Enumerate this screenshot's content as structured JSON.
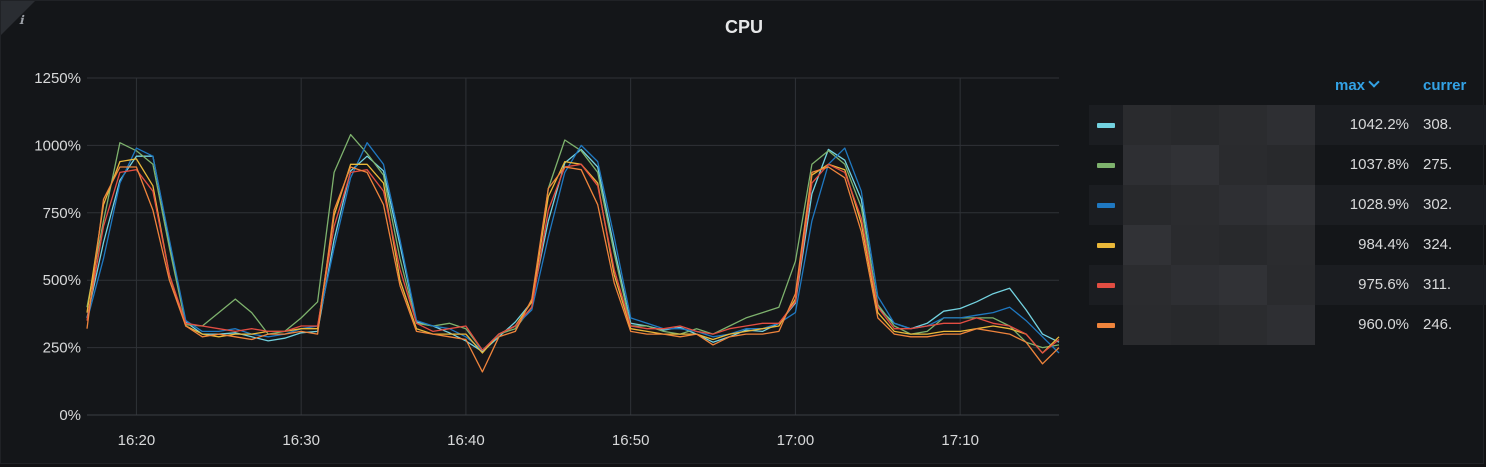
{
  "panel": {
    "title": "CPU",
    "info_icon": "ℹ"
  },
  "legend": {
    "headers": {
      "max": "max",
      "current": "currer"
    },
    "rows": [
      {
        "color": "#73d2e0",
        "max": "1042.2%",
        "current": "308."
      },
      {
        "color": "#7eb26d",
        "max": "1037.8%",
        "current": "275."
      },
      {
        "color": "#1f78c1",
        "max": "1028.9%",
        "current": "302."
      },
      {
        "color": "#eab839",
        "max": "984.4%",
        "current": "324."
      },
      {
        "color": "#e24d42",
        "max": "975.6%",
        "current": "311."
      },
      {
        "color": "#ef843c",
        "max": "960.0%",
        "current": "246."
      }
    ]
  },
  "chart_data": {
    "type": "line",
    "title": "CPU",
    "xlabel": "",
    "ylabel": "",
    "ylim": [
      0,
      1250
    ],
    "yticks": [
      "0%",
      "250%",
      "500%",
      "750%",
      "1000%",
      "1250%"
    ],
    "xticks": [
      "16:20",
      "16:30",
      "16:40",
      "16:50",
      "17:00",
      "17:10"
    ],
    "x_range": [
      "16:17",
      "17:16"
    ],
    "grid": true,
    "legend_position": "right",
    "x": [
      "16:17",
      "16:18",
      "16:19",
      "16:20",
      "16:21",
      "16:22",
      "16:23",
      "16:24",
      "16:25",
      "16:26",
      "16:27",
      "16:28",
      "16:29",
      "16:30",
      "16:31",
      "16:32",
      "16:33",
      "16:34",
      "16:35",
      "16:36",
      "16:37",
      "16:38",
      "16:39",
      "16:40",
      "16:41",
      "16:42",
      "16:43",
      "16:44",
      "16:45",
      "16:46",
      "16:47",
      "16:48",
      "16:49",
      "16:50",
      "16:51",
      "16:52",
      "16:53",
      "16:54",
      "16:55",
      "16:56",
      "16:57",
      "16:58",
      "16:59",
      "17:00",
      "17:01",
      "17:02",
      "17:03",
      "17:04",
      "17:05",
      "17:06",
      "17:07",
      "17:08",
      "17:09",
      "17:10",
      "17:11",
      "17:12",
      "17:13",
      "17:14",
      "17:15",
      "17:16"
    ],
    "series": [
      {
        "color": "#73d2e0",
        "values": [
          360,
          640,
          870,
          960,
          960,
          640,
          345,
          300,
          300,
          305,
          290,
          275,
          285,
          305,
          310,
          650,
          905,
          960,
          905,
          630,
          345,
          330,
          305,
          275,
          235,
          290,
          345,
          420,
          720,
          935,
          985,
          920,
          620,
          340,
          330,
          315,
          325,
          300,
          270,
          290,
          315,
          310,
          340,
          415,
          820,
          985,
          945,
          800,
          400,
          340,
          320,
          340,
          385,
          395,
          420,
          450,
          470,
          390,
          300,
          270
        ]
      },
      {
        "color": "#7eb26d",
        "values": [
          400,
          720,
          1010,
          980,
          930,
          620,
          335,
          330,
          380,
          430,
          380,
          300,
          310,
          360,
          420,
          900,
          1040,
          970,
          890,
          580,
          340,
          330,
          340,
          320,
          240,
          300,
          320,
          400,
          840,
          1020,
          980,
          900,
          600,
          330,
          330,
          310,
          300,
          320,
          300,
          330,
          360,
          380,
          400,
          570,
          930,
          980,
          930,
          770,
          410,
          330,
          300,
          310,
          360,
          360,
          360,
          360,
          330,
          270,
          250,
          260
        ]
      },
      {
        "color": "#1f78c1",
        "values": [
          350,
          580,
          860,
          990,
          960,
          650,
          350,
          310,
          310,
          320,
          300,
          290,
          300,
          320,
          330,
          620,
          880,
          1010,
          930,
          650,
          350,
          330,
          320,
          290,
          240,
          300,
          330,
          390,
          660,
          900,
          1000,
          940,
          660,
          360,
          340,
          320,
          320,
          310,
          290,
          300,
          320,
          320,
          340,
          380,
          720,
          930,
          990,
          830,
          440,
          340,
          320,
          330,
          360,
          360,
          370,
          380,
          400,
          350,
          290,
          230
        ]
      },
      {
        "color": "#eab839",
        "values": [
          380,
          780,
          940,
          950,
          850,
          520,
          330,
          300,
          290,
          300,
          300,
          310,
          310,
          320,
          320,
          740,
          930,
          930,
          860,
          500,
          320,
          300,
          300,
          300,
          230,
          300,
          330,
          420,
          810,
          940,
          930,
          860,
          520,
          320,
          310,
          300,
          300,
          300,
          280,
          300,
          310,
          320,
          330,
          430,
          890,
          930,
          910,
          710,
          380,
          310,
          300,
          300,
          310,
          310,
          320,
          330,
          320,
          300,
          230,
          290
        ]
      },
      {
        "color": "#e24d42",
        "values": [
          350,
          700,
          900,
          910,
          830,
          520,
          340,
          330,
          320,
          310,
          320,
          310,
          310,
          330,
          330,
          700,
          900,
          910,
          830,
          540,
          340,
          310,
          320,
          330,
          240,
          300,
          330,
          400,
          760,
          920,
          930,
          850,
          540,
          330,
          320,
          320,
          330,
          310,
          300,
          320,
          330,
          340,
          340,
          420,
          860,
          930,
          900,
          730,
          400,
          320,
          320,
          330,
          340,
          340,
          360,
          340,
          330,
          300,
          230,
          280
        ]
      },
      {
        "color": "#ef843c",
        "values": [
          320,
          800,
          920,
          920,
          760,
          500,
          330,
          290,
          300,
          290,
          280,
          300,
          300,
          310,
          300,
          760,
          920,
          900,
          780,
          480,
          310,
          300,
          290,
          280,
          160,
          290,
          310,
          430,
          840,
          920,
          910,
          780,
          490,
          310,
          300,
          300,
          290,
          300,
          260,
          290,
          300,
          300,
          310,
          450,
          900,
          920,
          880,
          680,
          360,
          300,
          290,
          290,
          300,
          300,
          320,
          310,
          300,
          270,
          190,
          250
        ]
      }
    ]
  }
}
